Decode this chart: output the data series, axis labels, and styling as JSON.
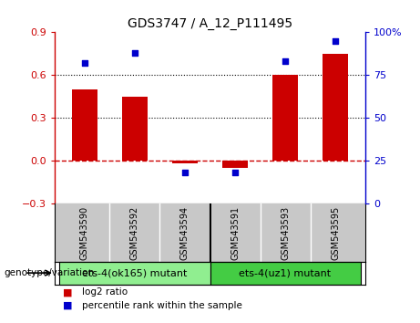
{
  "title": "GDS3747 / A_12_P111495",
  "categories": [
    "GSM543590",
    "GSM543592",
    "GSM543594",
    "GSM543591",
    "GSM543593",
    "GSM543595"
  ],
  "log2_ratio": [
    0.5,
    0.45,
    -0.02,
    -0.05,
    0.6,
    0.75
  ],
  "percentile_rank": [
    82,
    88,
    18,
    18,
    83,
    95
  ],
  "left_ylim": [
    -0.3,
    0.9
  ],
  "left_yticks": [
    -0.3,
    0.0,
    0.3,
    0.6,
    0.9
  ],
  "right_ylim": [
    0,
    100
  ],
  "right_yticks": [
    0,
    25,
    50,
    75,
    100
  ],
  "right_yticklabels": [
    "0",
    "25",
    "50",
    "75",
    "100%"
  ],
  "bar_color": "#cc0000",
  "marker_color": "#0000cc",
  "hline_y": 0,
  "hline_color": "#cc0000",
  "hline_style": "--",
  "dotted_lines": [
    0.3,
    0.6
  ],
  "groups": [
    {
      "label": "ets-4(ok165) mutant",
      "indices": [
        0,
        1,
        2
      ],
      "color": "#90ee90"
    },
    {
      "label": "ets-4(uz1) mutant",
      "indices": [
        3,
        4,
        5
      ],
      "color": "#44cc44"
    }
  ],
  "group_label": "genotype/variation",
  "legend_items": [
    {
      "label": "log2 ratio",
      "color": "#cc0000"
    },
    {
      "label": "percentile rank within the sample",
      "color": "#0000cc"
    }
  ],
  "sample_bg_color": "#c8c8c8",
  "plot_bg": "#ffffff",
  "bar_width": 0.5
}
